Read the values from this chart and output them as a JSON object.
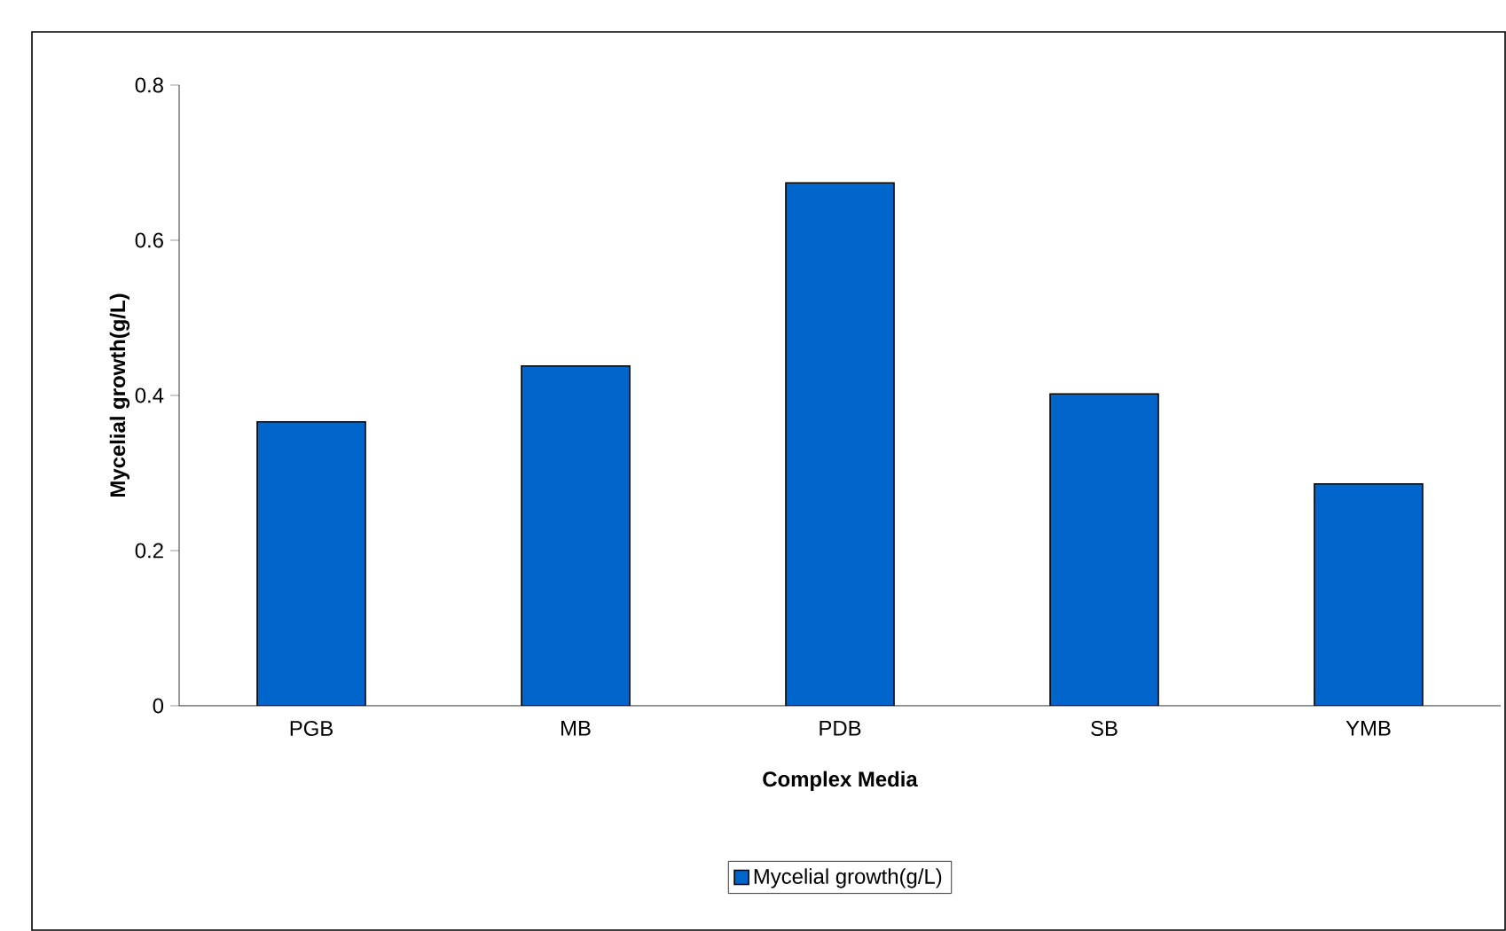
{
  "chart_data": {
    "type": "bar",
    "xlabel": "Complex Media",
    "ylabel": "Mycelial growth(g/L)",
    "categories": [
      "PGB",
      "MB",
      "PDB",
      "SB",
      "YMB"
    ],
    "series": [
      {
        "name": "Mycelial growth(g/L)",
        "color": "#0066cc",
        "values": [
          0.366,
          0.438,
          0.674,
          0.402,
          0.286
        ]
      }
    ],
    "ylim": [
      0,
      0.8
    ],
    "yticks": [
      0,
      0.2,
      0.4,
      0.6,
      0.8
    ],
    "legend": "bottom",
    "grid": false
  }
}
